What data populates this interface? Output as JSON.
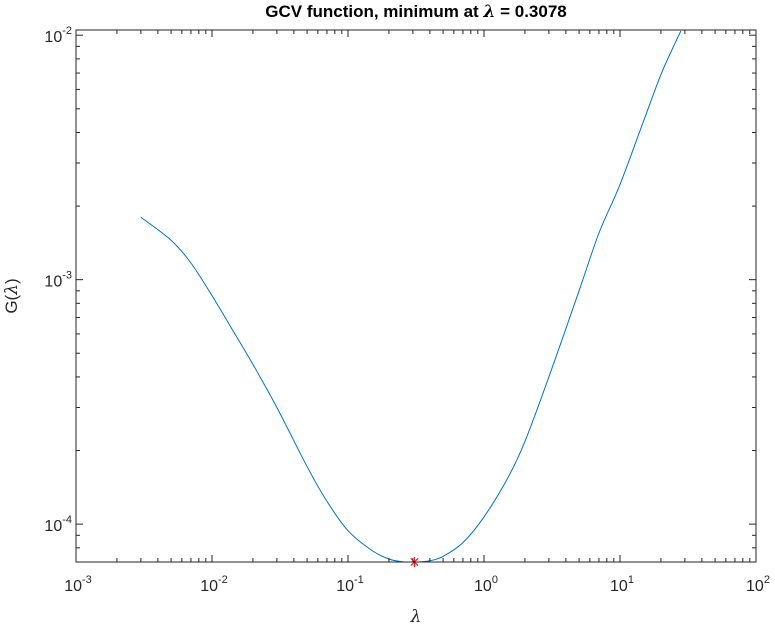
{
  "chart_data": {
    "type": "line",
    "title": {
      "prefix": "GCV function, minimum at ",
      "symbol": "λ",
      "suffix": " = 0.3078"
    },
    "xlabel": "λ",
    "ylabel": {
      "prefix": "G(",
      "symbol": "λ",
      "suffix": ")"
    },
    "xscale": "log",
    "yscale": "log",
    "xlim": [
      0.001,
      100
    ],
    "ylim": [
      7e-05,
      0.0105
    ],
    "grid": false,
    "box": true,
    "x_ticks": [
      {
        "base": "10",
        "exp": "-3",
        "value": 0.001
      },
      {
        "base": "10",
        "exp": "-2",
        "value": 0.01
      },
      {
        "base": "10",
        "exp": "-1",
        "value": 0.1
      },
      {
        "base": "10",
        "exp": "0",
        "value": 1
      },
      {
        "base": "10",
        "exp": "1",
        "value": 10
      },
      {
        "base": "10",
        "exp": "2",
        "value": 100
      }
    ],
    "y_ticks": [
      {
        "base": "10",
        "exp": "-4",
        "value": 0.0001
      },
      {
        "base": "10",
        "exp": "-3",
        "value": 0.001
      },
      {
        "base": "10",
        "exp": "-2",
        "value": 0.01
      }
    ],
    "series": [
      {
        "color": "#0072bd",
        "marker": "none",
        "x": [
          0.003,
          0.005,
          0.007,
          0.01,
          0.015,
          0.02,
          0.03,
          0.05,
          0.07,
          0.1,
          0.15,
          0.2,
          0.25,
          0.3078,
          0.35,
          0.4,
          0.5,
          0.7,
          1,
          1.5,
          2,
          3,
          5,
          7,
          10,
          15,
          20,
          25,
          28
        ],
        "y": [
          0.0018,
          0.00145,
          0.00117,
          0.00086,
          0.00059,
          0.00045,
          0.0003,
          0.000172,
          0.000124,
          9.4e-05,
          7.8e-05,
          7.2e-05,
          7.02e-05,
          7e-05,
          7.02e-05,
          7.08e-05,
          7.38e-05,
          8.4e-05,
          0.000107,
          0.000155,
          0.000218,
          0.0004,
          0.0009,
          0.00155,
          0.00245,
          0.0045,
          0.0069,
          0.0091,
          0.0104
        ]
      }
    ],
    "minimum_marker": {
      "x": 0.3078,
      "y": 7e-05,
      "marker": "*",
      "color": "#ff0000"
    }
  }
}
